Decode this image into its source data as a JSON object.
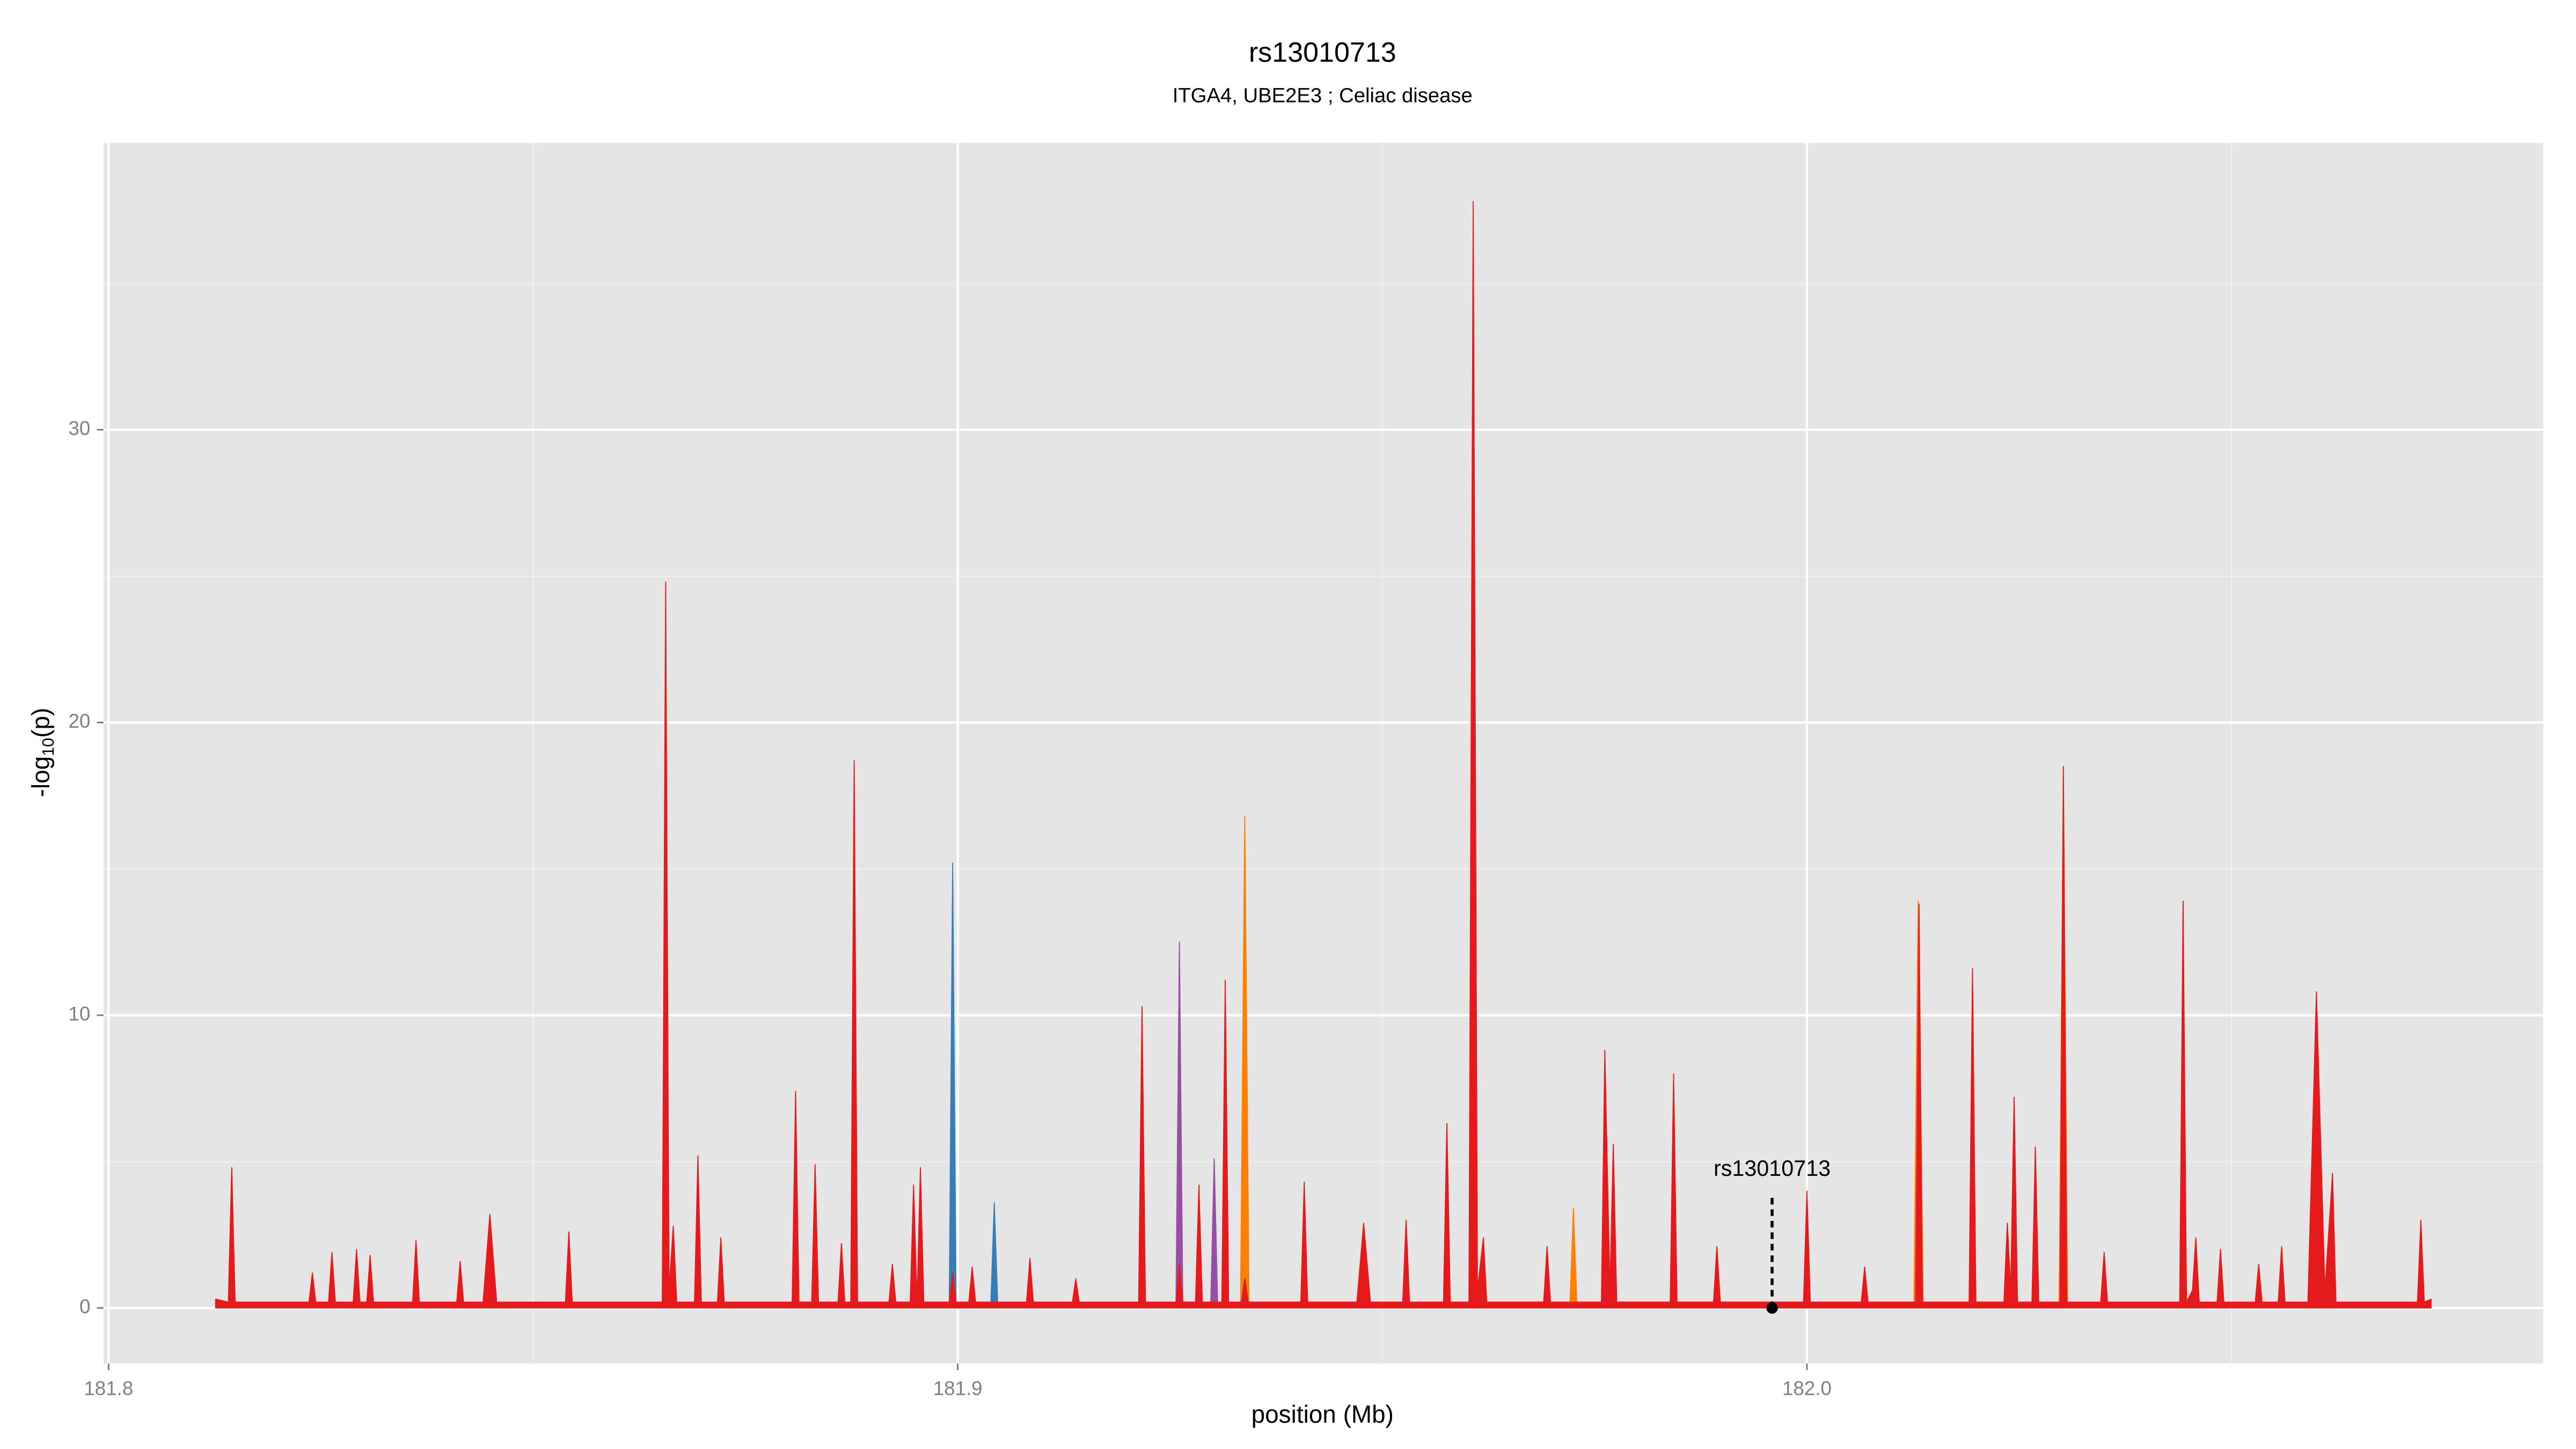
{
  "chart_data": {
    "type": "area",
    "title": "rs13010713",
    "subtitle": "ITGA4, UBE2E3 ; Celiac disease",
    "x_label": "position (Mb)",
    "y_label": {
      "pre": "-log",
      "sub": "10",
      "post": "(p)"
    },
    "xlim": [
      181.7994,
      182.0867
    ],
    "ylim": [
      -1.9,
      39.8
    ],
    "xticks": [
      181.8,
      181.9,
      {
        "value": 182,
        "label": "182.0"
      }
    ],
    "yticks": [
      0,
      10,
      20,
      30
    ],
    "grid": true,
    "minor_grid": true,
    "annotation": {
      "label": "rs13010713",
      "x": 181.9959,
      "y": 0,
      "color": "#000000"
    },
    "series": [
      {
        "color": "#377eb8",
        "x": [
          181.8805,
          181.8809,
          181.8813,
          181.899,
          181.8994,
          181.8998,
          181.9039,
          181.9043,
          181.9047
        ],
        "values": [
          0.2,
          6.5,
          0.2,
          0.2,
          15.2,
          0.2,
          0.2,
          3.6,
          0.2
        ]
      },
      {
        "color": "#984ea3",
        "x": [
          181.9257,
          181.9261,
          181.9265,
          181.9298,
          181.9302,
          181.9306
        ],
        "values": [
          0.2,
          12.5,
          0.2,
          0.2,
          5.1,
          0.2
        ]
      },
      {
        "color": "#ff7f00",
        "x": [
          181.9333,
          181.9338,
          181.9343,
          181.9721,
          181.9725,
          181.9729,
          182.0126,
          182.0131,
          182.0137,
          182.0297,
          182.0302,
          182.0307
        ],
        "values": [
          0.2,
          16.8,
          0.2,
          0.2,
          3.4,
          0.2,
          0.2,
          13.9,
          0.2,
          0.2,
          18.2,
          0.2
        ]
      },
      {
        "color": "#e41a1c",
        "x": [
          181.8126,
          181.8141,
          181.8145,
          181.8149,
          181.8236,
          181.824,
          181.8244,
          181.8259,
          181.8263,
          181.8267,
          181.8288,
          181.8292,
          181.8296,
          181.8304,
          181.8308,
          181.8312,
          181.8358,
          181.8362,
          181.8366,
          181.841,
          181.8414,
          181.8418,
          181.8441,
          181.8449,
          181.8457,
          181.8538,
          181.8542,
          181.8546,
          181.8652,
          181.8656,
          181.866,
          181.8665,
          181.8669,
          181.869,
          181.8694,
          181.8698,
          181.8717,
          181.8721,
          181.8725,
          181.8805,
          181.8809,
          181.8813,
          181.8828,
          181.8832,
          181.8836,
          181.8859,
          181.8863,
          181.8867,
          181.8874,
          181.8878,
          181.8882,
          181.8919,
          181.8923,
          181.8927,
          181.8944,
          181.8948,
          181.8952,
          181.8956,
          181.896,
          181.899,
          181.8994,
          181.8998,
          181.9013,
          181.9017,
          181.9021,
          181.9081,
          181.9085,
          181.9089,
          181.9135,
          181.9139,
          181.9143,
          181.9213,
          181.9217,
          181.9221,
          181.9257,
          181.9261,
          181.9265,
          181.928,
          181.9284,
          181.9288,
          181.9311,
          181.9315,
          181.9319,
          181.9334,
          181.9338,
          181.9342,
          181.9404,
          181.9408,
          181.9412,
          181.947,
          181.9478,
          181.9486,
          181.9524,
          181.9528,
          181.9532,
          181.9572,
          181.9576,
          181.958,
          181.9602,
          181.9607,
          181.9612,
          181.9619,
          181.9623,
          181.969,
          181.9694,
          181.9698,
          181.9758,
          181.9762,
          181.9768,
          181.9772,
          181.9776,
          181.9839,
          181.9843,
          181.9847,
          181.989,
          181.9894,
          181.9898,
          181.9996,
          182.0,
          182.0004,
          182.0064,
          182.0068,
          182.0072,
          182.0128,
          182.0132,
          182.0136,
          182.0191,
          182.0195,
          182.0199,
          182.0232,
          182.0236,
          182.024,
          182.0244,
          182.0248,
          182.0265,
          182.0269,
          182.0273,
          182.0298,
          182.0302,
          182.0306,
          182.0346,
          182.035,
          182.0354,
          182.0439,
          182.0443,
          182.0447,
          182.0454,
          182.0458,
          182.0462,
          182.0483,
          182.0487,
          182.0491,
          182.0528,
          182.0532,
          182.0536,
          182.0555,
          182.0559,
          182.0563,
          182.059,
          182.06,
          182.061,
          182.0619,
          182.0623,
          182.0719,
          182.0723,
          182.0727,
          182.0735
        ],
        "values": [
          0.3,
          0.2,
          4.8,
          0.2,
          0.2,
          1.2,
          0.2,
          0.2,
          1.9,
          0.2,
          0.2,
          2.0,
          0.2,
          0.2,
          1.8,
          0.2,
          0.2,
          2.3,
          0.2,
          0.2,
          1.6,
          0.2,
          0.2,
          3.2,
          0.2,
          0.2,
          2.6,
          0.2,
          0.2,
          24.8,
          0.6,
          2.8,
          0.2,
          0.2,
          5.2,
          0.2,
          0.2,
          2.4,
          0.2,
          0.2,
          7.4,
          0.2,
          0.2,
          4.9,
          0.2,
          0.2,
          2.2,
          0.2,
          0.2,
          18.7,
          0.2,
          0.2,
          1.5,
          0.2,
          0.2,
          4.2,
          0.2,
          4.8,
          0.2,
          0.2,
          1.2,
          0.2,
          0.2,
          1.4,
          0.2,
          0.2,
          1.7,
          0.2,
          0.2,
          1.0,
          0.2,
          0.2,
          10.3,
          0.2,
          0.2,
          1.5,
          0.2,
          0.2,
          4.2,
          0.2,
          0.2,
          11.2,
          0.2,
          0.2,
          1.0,
          0.2,
          0.2,
          4.3,
          0.2,
          0.2,
          2.9,
          0.2,
          0.2,
          3.0,
          0.2,
          0.2,
          6.3,
          0.2,
          0.2,
          37.8,
          0.6,
          2.4,
          0.2,
          0.2,
          2.1,
          0.2,
          0.2,
          8.8,
          0.6,
          5.6,
          0.2,
          0.2,
          8.0,
          0.2,
          0.2,
          2.1,
          0.2,
          0.2,
          4.0,
          0.2,
          0.2,
          1.4,
          0.2,
          0.2,
          13.8,
          0.2,
          0.2,
          11.6,
          0.2,
          0.2,
          2.9,
          0.6,
          7.2,
          0.2,
          0.2,
          5.5,
          0.2,
          0.2,
          18.5,
          0.2,
          0.2,
          1.9,
          0.2,
          0.2,
          13.9,
          0.2,
          0.6,
          2.4,
          0.2,
          0.2,
          2.0,
          0.2,
          0.2,
          1.5,
          0.2,
          0.2,
          2.1,
          0.2,
          0.2,
          10.8,
          0.6,
          4.6,
          0.2,
          0.2,
          3.0,
          0.2,
          0.3
        ]
      }
    ]
  }
}
